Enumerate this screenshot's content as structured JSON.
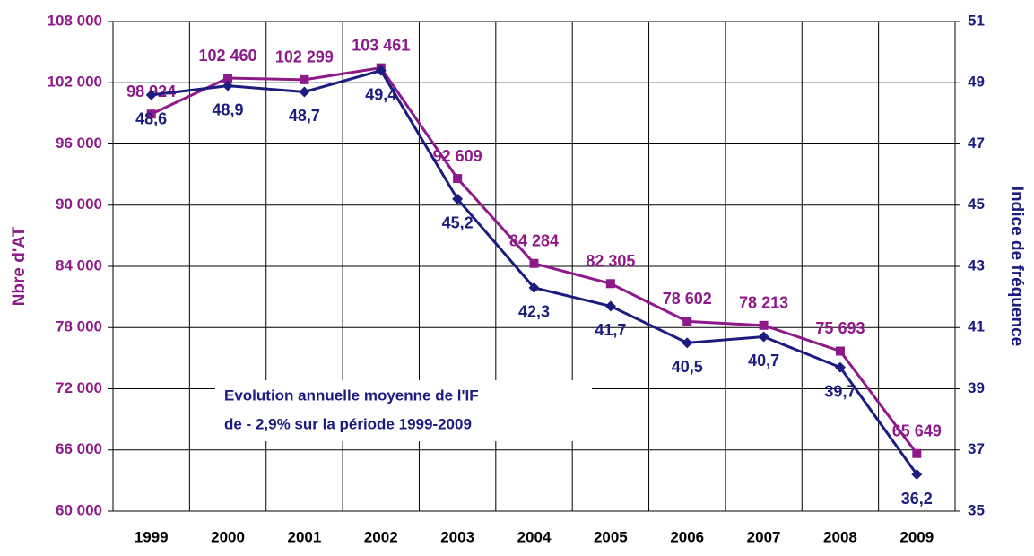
{
  "chart_data": {
    "type": "line",
    "categories": [
      "1999",
      "2000",
      "2001",
      "2002",
      "2003",
      "2004",
      "2005",
      "2006",
      "2007",
      "2008",
      "2009"
    ],
    "ylabel": "Nbre d'AT",
    "y2label": "Indice de fréquence",
    "ylim": [
      60000,
      108000
    ],
    "yticks": [
      {
        "value": 60000,
        "label": "60 000"
      },
      {
        "value": 66000,
        "label": "66 000"
      },
      {
        "value": 72000,
        "label": "72 000"
      },
      {
        "value": 78000,
        "label": "78 000"
      },
      {
        "value": 84000,
        "label": "84 000"
      },
      {
        "value": 90000,
        "label": "90 000"
      },
      {
        "value": 96000,
        "label": "96 000"
      },
      {
        "value": 102000,
        "label": "102 000"
      },
      {
        "value": 108000,
        "label": "108 000"
      }
    ],
    "y2lim": [
      35,
      51
    ],
    "y2ticks": [
      35,
      37,
      39,
      41,
      43,
      45,
      47,
      49,
      51
    ],
    "grid": true,
    "annotation": [
      "Evolution annuelle moyenne de l'IF",
      "de - 2,9% sur la période 1999-2009"
    ],
    "series": [
      {
        "name": "Nbre d'AT",
        "color": "#8e1a8a",
        "marker": "square",
        "axis": "y",
        "values": [
          98924,
          102460,
          102299,
          103461,
          92609,
          84284,
          82305,
          78602,
          78213,
          75693,
          65649
        ],
        "value_labels": [
          "98 924",
          "102 460",
          "102 299",
          "103 461",
          "92 609",
          "84 284",
          "82 305",
          "78 602",
          "78 213",
          "75 693",
          "65 649"
        ]
      },
      {
        "name": "Indice de fréquence",
        "color": "#1c1c80",
        "marker": "diamond",
        "axis": "y2",
        "values": [
          48.6,
          48.9,
          48.7,
          49.4,
          45.2,
          42.3,
          41.7,
          40.5,
          40.7,
          39.7,
          36.2
        ],
        "value_labels": [
          "48,6",
          "48,9",
          "48,7",
          "49,4",
          "45,2",
          "42,3",
          "41,7",
          "40,5",
          "40,7",
          "39,7",
          "36,2"
        ]
      }
    ]
  }
}
